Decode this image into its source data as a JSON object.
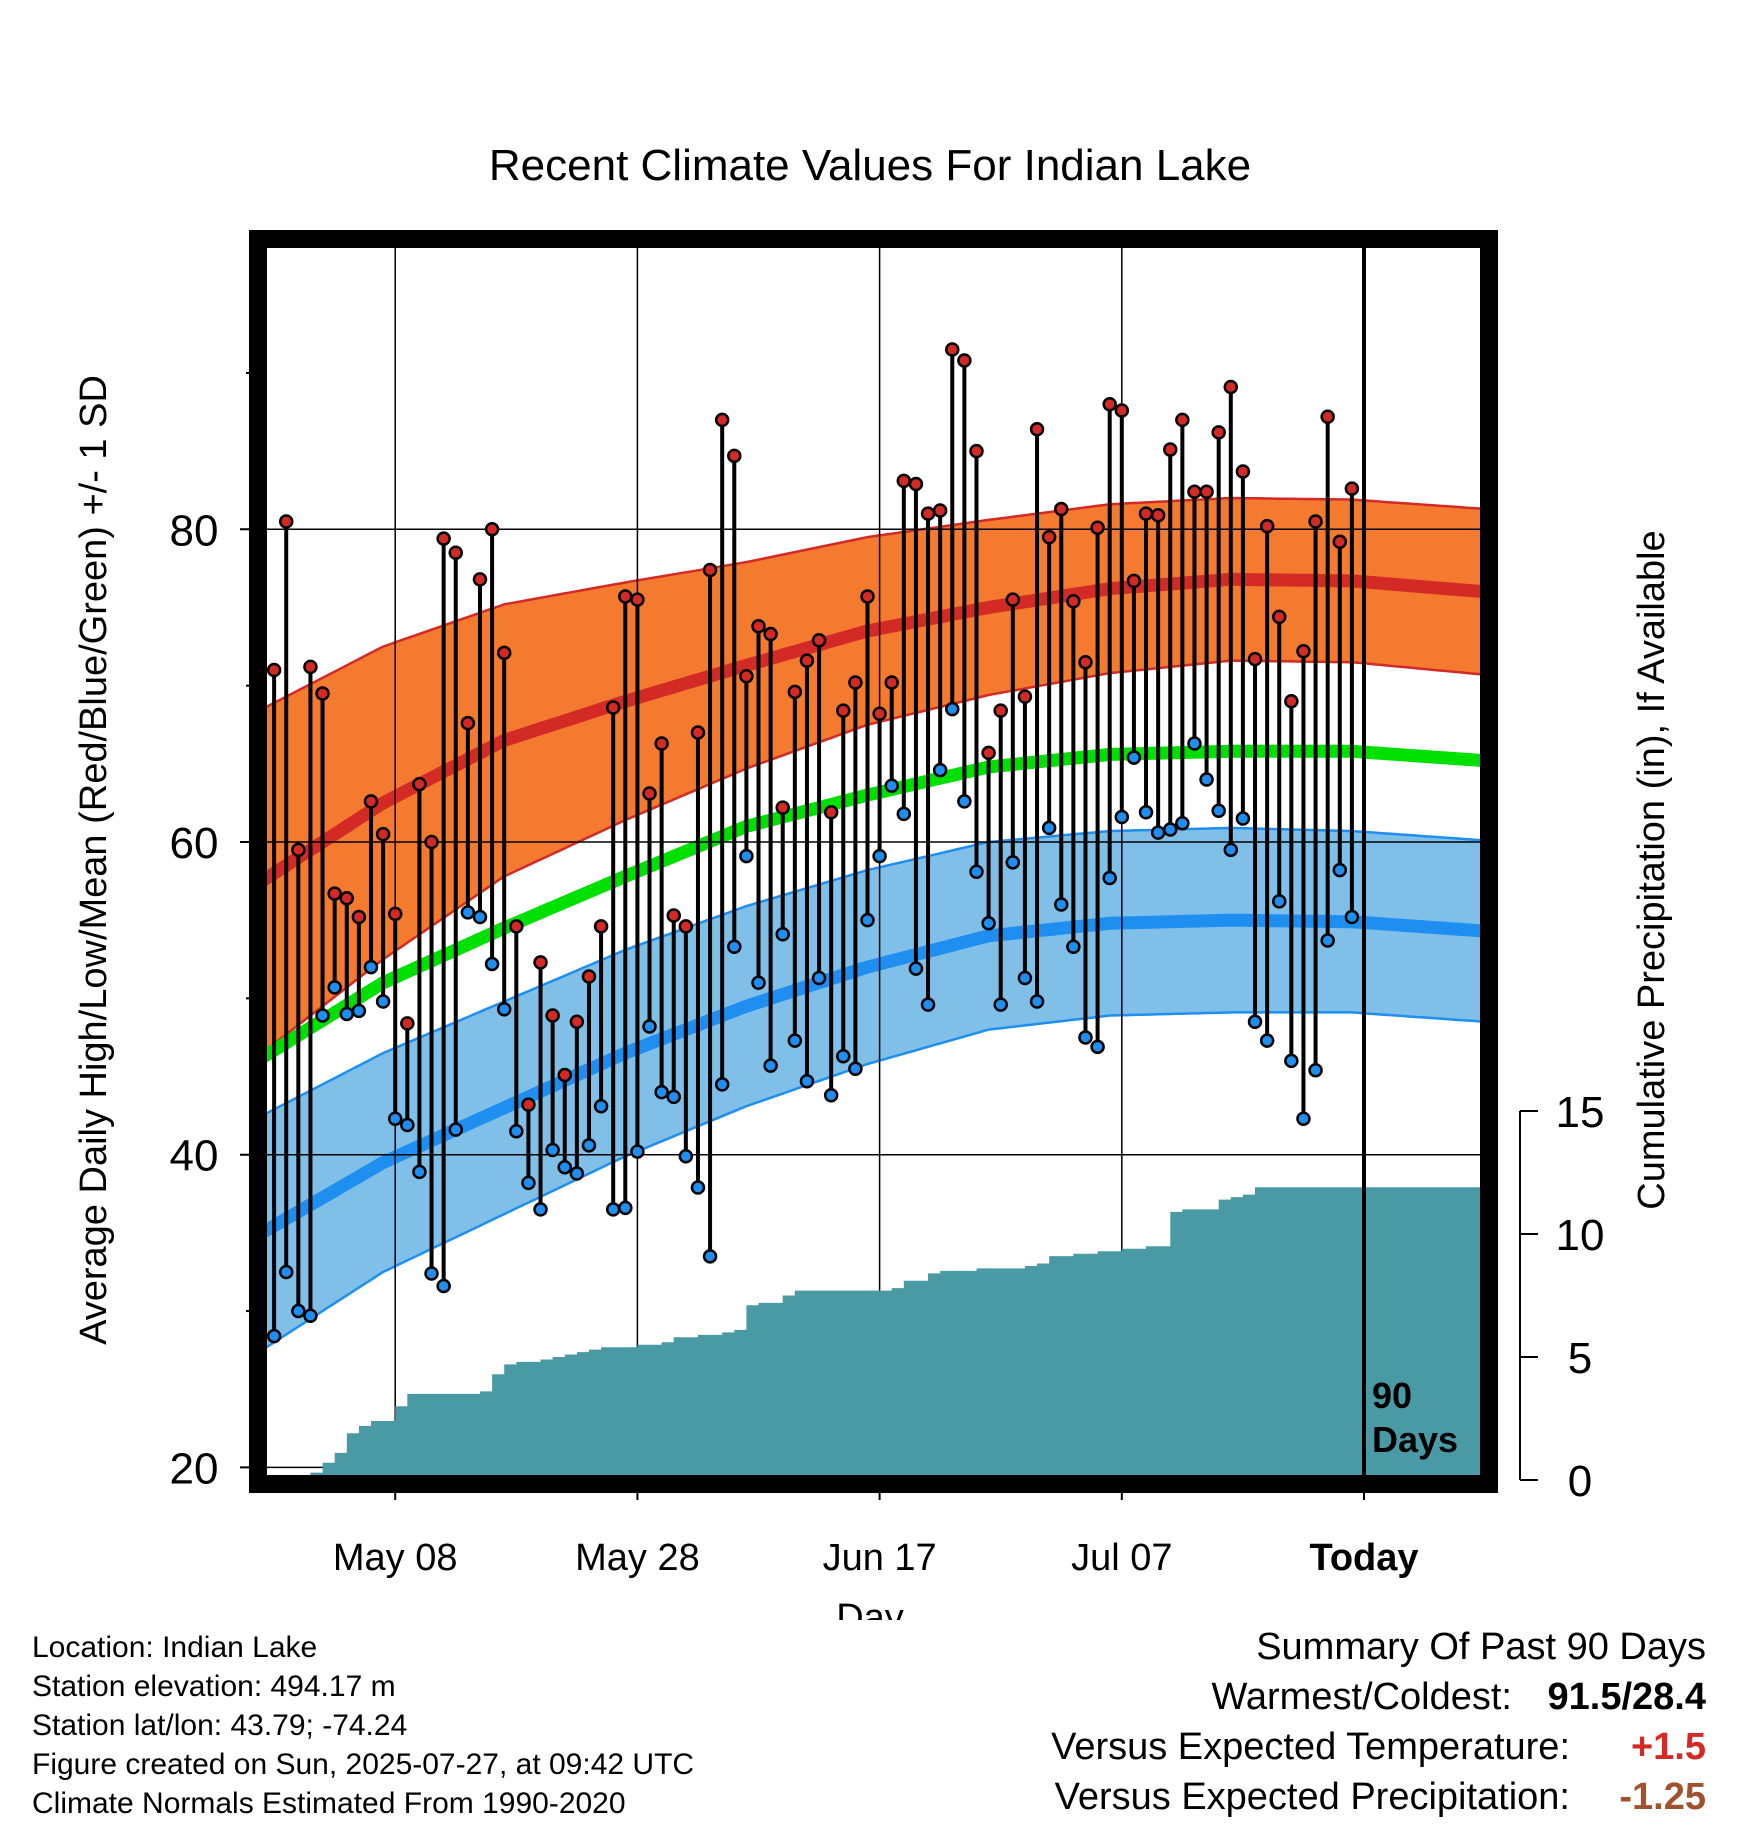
{
  "chart_data": {
    "type": "line",
    "title": "Recent Climate Values For Indian Lake",
    "xlabel": "Day",
    "ylabel": "Average Daily High/Low/Mean (Red/Blue/Green) +/- 1 SD",
    "y2label": "Cumulative Precipitation (in), If Available",
    "ylim": [
      18.5,
      96
    ],
    "y2lim": [
      0,
      30
    ],
    "y_ticks": [
      20,
      40,
      60,
      80
    ],
    "y2_ticks": [
      0,
      5,
      10,
      15
    ],
    "x_ticks": [
      {
        "day": 11,
        "label": "May 08"
      },
      {
        "day": 31,
        "label": "May 28"
      },
      {
        "day": 51,
        "label": "Jun 17"
      },
      {
        "day": 71,
        "label": "Jul 07"
      },
      {
        "day": 91,
        "label": "Today"
      }
    ],
    "today_day": 91,
    "today_label_line1": "90",
    "today_label_line2": "Days",
    "normals": {
      "days": [
        0,
        10,
        20,
        30,
        40,
        50,
        60,
        70,
        80,
        90,
        101
      ],
      "high_mean": [
        57.5,
        62.5,
        66.5,
        69.0,
        71.3,
        73.5,
        75.0,
        76.2,
        76.8,
        76.7,
        76.0
      ],
      "high_sd": [
        11.0,
        10.0,
        8.7,
        7.6,
        6.6,
        6.0,
        5.6,
        5.4,
        5.2,
        5.2,
        5.3
      ],
      "mean": [
        46.2,
        51.0,
        54.5,
        57.8,
        61.0,
        63.0,
        64.8,
        65.6,
        65.8,
        65.8,
        65.2
      ],
      "low_mean": [
        35.0,
        39.5,
        43.0,
        46.5,
        49.5,
        52.0,
        54.0,
        54.8,
        55.0,
        54.9,
        54.3
      ],
      "low_sd": [
        7.5,
        7.0,
        6.8,
        6.6,
        6.4,
        6.2,
        6.0,
        5.9,
        5.9,
        5.8,
        5.8
      ]
    },
    "series": [
      {
        "name": "High",
        "color": "#cc2222",
        "values": [
          71.0,
          80.5,
          59.5,
          71.2,
          69.5,
          56.7,
          56.4,
          55.2,
          62.6,
          60.5,
          55.4,
          48.4,
          63.7,
          60.0,
          79.4,
          78.5,
          67.6,
          76.8,
          80.0,
          72.1,
          54.6,
          43.2,
          52.3,
          48.9,
          45.1,
          48.5,
          51.4,
          54.6,
          68.6,
          75.7,
          75.5,
          63.1,
          66.3,
          55.3,
          54.6,
          67.0,
          77.4,
          87.0,
          84.7,
          70.6,
          73.8,
          73.3,
          62.2,
          69.6,
          71.6,
          72.9,
          61.9,
          68.4,
          70.2,
          75.7,
          68.2,
          70.2,
          83.1,
          82.9,
          81.0,
          81.2,
          91.5,
          90.8,
          85.0,
          65.7,
          68.4,
          75.5,
          69.3,
          86.4,
          79.5,
          81.3,
          75.4,
          71.5,
          80.1,
          88.0,
          87.6,
          76.7,
          81.0,
          80.9,
          85.1,
          87.0,
          82.4,
          82.4,
          86.2,
          89.1,
          83.7,
          71.7,
          80.2,
          74.4,
          69.0,
          72.2,
          80.5,
          87.2,
          79.2,
          82.6
        ]
      },
      {
        "name": "Low",
        "color": "#2c8fe0",
        "values": [
          28.4,
          32.5,
          30.0,
          29.7,
          48.9,
          50.7,
          49.0,
          49.2,
          52.0,
          49.8,
          42.3,
          41.9,
          38.9,
          32.4,
          31.6,
          41.6,
          55.5,
          55.2,
          52.2,
          49.3,
          41.5,
          38.2,
          36.5,
          40.3,
          39.2,
          38.8,
          40.6,
          43.1,
          36.5,
          36.6,
          40.2,
          48.2,
          44.0,
          43.7,
          39.9,
          37.9,
          33.5,
          44.5,
          53.3,
          59.1,
          51.0,
          45.7,
          54.1,
          47.3,
          44.7,
          51.3,
          43.8,
          46.3,
          45.5,
          55.0,
          59.1,
          63.6,
          61.8,
          51.9,
          49.6,
          64.6,
          68.5,
          62.6,
          58.1,
          54.8,
          49.6,
          58.7,
          51.3,
          49.8,
          60.9,
          56.0,
          53.3,
          47.5,
          46.9,
          57.7,
          61.6,
          65.4,
          61.9,
          60.6,
          60.8,
          61.2,
          66.3,
          64.0,
          62.0,
          59.5,
          61.5,
          48.5,
          47.3,
          56.2,
          46.0,
          42.3,
          45.4,
          53.7,
          58.2,
          55.2
        ]
      },
      {
        "name": "Cumulative Precipitation",
        "color": "#4a9aa5",
        "x": [
          5,
          6,
          7,
          8,
          9,
          10,
          11,
          12,
          13,
          14,
          15,
          16,
          17,
          18,
          19,
          20,
          21,
          22,
          23,
          24,
          25,
          26,
          27,
          28,
          29,
          30,
          31,
          32,
          33,
          34,
          35,
          36,
          37,
          38,
          39,
          40,
          41,
          42,
          43,
          44,
          45,
          46,
          47,
          48,
          49,
          50,
          51,
          52,
          53,
          54,
          55,
          56,
          57,
          58,
          59,
          60,
          61,
          62,
          63,
          64,
          65,
          66,
          67,
          68,
          69,
          70,
          71,
          72,
          73,
          74,
          75,
          76,
          77,
          78,
          79,
          80,
          81,
          82,
          83,
          84,
          85,
          86,
          87,
          88,
          89,
          90,
          91,
          92,
          93,
          94,
          95,
          96,
          97,
          98,
          99,
          100,
          101
        ],
        "values": [
          0.3,
          0.7,
          1.1,
          1.9,
          2.2,
          2.4,
          2.4,
          3.0,
          3.5,
          3.5,
          3.5,
          3.5,
          3.5,
          3.5,
          3.6,
          4.3,
          4.7,
          4.8,
          4.8,
          4.9,
          5.0,
          5.1,
          5.2,
          5.3,
          5.4,
          5.4,
          5.4,
          5.5,
          5.5,
          5.6,
          5.8,
          5.8,
          5.9,
          5.9,
          6.0,
          6.1,
          7.1,
          7.2,
          7.2,
          7.5,
          7.7,
          7.7,
          7.7,
          7.7,
          7.7,
          7.7,
          7.7,
          7.7,
          7.8,
          8.1,
          8.1,
          8.4,
          8.5,
          8.5,
          8.5,
          8.6,
          8.6,
          8.6,
          8.6,
          8.7,
          8.8,
          9.1,
          9.1,
          9.2,
          9.2,
          9.3,
          9.3,
          9.4,
          9.4,
          9.5,
          9.5,
          10.9,
          11.0,
          11.0,
          11.0,
          11.4,
          11.5,
          11.6,
          11.9,
          11.9,
          11.9,
          11.9,
          11.9,
          11.9,
          11.9,
          11.9,
          11.9,
          11.9,
          11.9,
          11.9,
          11.9,
          11.9,
          11.9,
          11.9,
          11.9,
          11.9,
          11.9
        ]
      }
    ],
    "colors": {
      "high_band": "#f47a30",
      "high_line": "#d42a26",
      "low_band": "#80c0e8",
      "low_line": "#1e8ff0",
      "mean_line": "#00e000",
      "precip": "#4a9aa5",
      "frame": "#000000"
    },
    "grid": true
  },
  "location_text": "Location: Indian Lake",
  "elevation_text": "Station elevation: 494.17 m",
  "latlon_text": "Station lat/lon: 43.79; -74.24",
  "created_text": "Figure created on Sun, 2025-07-27, at 09:42 UTC",
  "normals_text": "Climate Normals Estimated From 1990-2020",
  "summary": {
    "heading": "Summary Of Past 90 Days",
    "extremes_label": "Warmest/Coldest:",
    "extremes_value": "91.5/28.4",
    "temp_label": "Versus Expected Temperature:",
    "temp_value": "+1.5",
    "temp_color": "#d42a26",
    "precip_label": "Versus Expected Precipitation:",
    "precip_value": "-1.25",
    "precip_color": "#a0522d"
  }
}
